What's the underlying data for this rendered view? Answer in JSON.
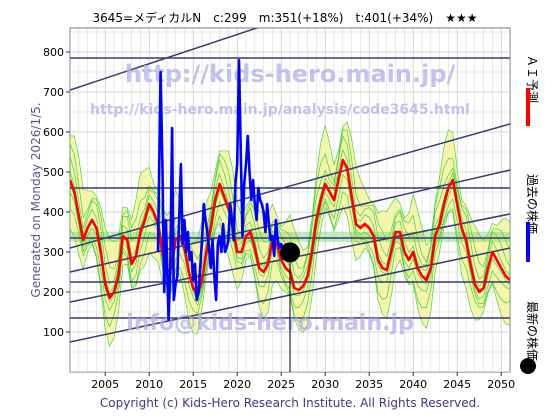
{
  "header": {
    "title": "3645=メディカルN　c:299　m:351(+18%)　t:401(+34%)　★★★"
  },
  "watermarks": {
    "url_main": "http://kids-hero.main.jp/",
    "url_analysis": "http://kids-hero.main.jp/analysis/code3645.html",
    "email": "info@kids-hero.main.jp"
  },
  "side_note": "Generated on Monday 2026/1/5.",
  "footer": "Copyright (c) Kids-Hero Research Institute. All Rights Reserved.",
  "legend": {
    "items": [
      {
        "label": "ＡＩ予測",
        "color": "#ff0000",
        "marker": "line"
      },
      {
        "label": "過去の株価",
        "color": "#0000ff",
        "marker": "line"
      },
      {
        "label": "最新の株価",
        "color": "#000000",
        "marker": "dot"
      }
    ]
  },
  "colors": {
    "plot_bg": "#ffffff",
    "grid": "#c8c8c8",
    "band_fill": "#f4f4a0",
    "band_line": "#33cc33",
    "trend_line": "#3a3a6e",
    "ai_line": "#ff0000",
    "past_line": "#0000ff",
    "latest_dot": "#000000",
    "watermark": "#b0b0e8",
    "side_text": "#555599",
    "footer_text": "#3a3a8a"
  },
  "chart_data": {
    "type": "line",
    "xlim": [
      2001,
      2051
    ],
    "ylim": [
      0,
      860
    ],
    "xticks": [
      2005,
      2010,
      2015,
      2020,
      2025,
      2030,
      2035,
      2040,
      2045,
      2050
    ],
    "yticks": [
      100,
      200,
      300,
      400,
      500,
      600,
      700,
      800
    ],
    "grid": true,
    "legend_position": "right",
    "horizontal_levels": [
      785,
      460,
      335,
      225,
      135
    ],
    "trend_channels": [
      {
        "x": [
          2001,
          2051
        ],
        "y": [
          705,
          1070
        ]
      },
      {
        "x": [
          2001,
          2051
        ],
        "y": [
          250,
          505
        ]
      },
      {
        "x": [
          2001,
          2051
        ],
        "y": [
          310,
          620
        ]
      },
      {
        "x": [
          2001,
          2051
        ],
        "y": [
          175,
          395
        ]
      },
      {
        "x": [
          2001,
          2051
        ],
        "y": [
          75,
          310
        ]
      }
    ],
    "latest": {
      "x": 2026.0,
      "y": 299
    },
    "series": [
      {
        "name": "過去の株価",
        "x": [
          2011.0,
          2011.3,
          2011.5,
          2011.7,
          2011.9,
          2012.0,
          2012.2,
          2012.4,
          2012.6,
          2012.8,
          2013.0,
          2013.2,
          2013.4,
          2013.6,
          2013.8,
          2014.0,
          2014.2,
          2014.4,
          2014.6,
          2014.8,
          2015.0,
          2015.2,
          2015.4,
          2015.6,
          2015.8,
          2016.0,
          2016.2,
          2016.4,
          2016.6,
          2016.8,
          2017.0,
          2017.2,
          2017.4,
          2017.6,
          2017.8,
          2018.0,
          2018.2,
          2018.4,
          2018.6,
          2018.8,
          2019.0,
          2019.2,
          2019.4,
          2019.6,
          2019.8,
          2020.0,
          2020.2,
          2020.4,
          2020.6,
          2020.8,
          2021.0,
          2021.2,
          2021.4,
          2021.6,
          2021.8,
          2022.0,
          2022.2,
          2022.4,
          2022.6,
          2022.8,
          2023.0,
          2023.2,
          2023.4,
          2023.6,
          2023.8,
          2024.0,
          2024.2,
          2024.4,
          2024.6,
          2024.8,
          2025.0,
          2025.3,
          2025.6,
          2025.8,
          2026.0
        ],
        "y": [
          300,
          750,
          520,
          200,
          380,
          300,
          130,
          260,
          610,
          180,
          220,
          240,
          380,
          520,
          320,
          380,
          300,
          350,
          280,
          300,
          230,
          270,
          180,
          200,
          260,
          330,
          420,
          380,
          350,
          310,
          260,
          330,
          240,
          180,
          320,
          340,
          300,
          370,
          300,
          310,
          330,
          420,
          380,
          330,
          470,
          520,
          780,
          560,
          340,
          470,
          520,
          590,
          500,
          430,
          480,
          420,
          380,
          460,
          430,
          420,
          400,
          350,
          420,
          370,
          330,
          340,
          290,
          380,
          330,
          310,
          320,
          300,
          310,
          295,
          299
        ]
      },
      {
        "name": "ＡＩ予測",
        "x": [
          2001.0,
          2001.5,
          2002.0,
          2002.5,
          2003.0,
          2003.5,
          2004.0,
          2004.5,
          2005.0,
          2005.5,
          2006.0,
          2006.5,
          2007.0,
          2007.5,
          2008.0,
          2008.5,
          2009.0,
          2009.5,
          2010.0,
          2010.5,
          2011.0,
          2011.5,
          2012.0,
          2012.5,
          2013.0,
          2013.5,
          2014.0,
          2014.5,
          2015.0,
          2015.5,
          2016.0,
          2016.5,
          2017.0,
          2017.5,
          2018.0,
          2018.5,
          2019.0,
          2019.5,
          2020.0,
          2020.5,
          2021.0,
          2021.5,
          2022.0,
          2022.5,
          2023.0,
          2023.5,
          2024.0,
          2024.5,
          2025.0,
          2025.5,
          2026.0,
          2026.5,
          2027.0,
          2027.5,
          2028.0,
          2028.5,
          2029.0,
          2029.5,
          2030.0,
          2030.5,
          2031.0,
          2031.5,
          2032.0,
          2032.5,
          2033.0,
          2033.5,
          2034.0,
          2034.5,
          2035.0,
          2035.5,
          2036.0,
          2036.5,
          2037.0,
          2037.5,
          2038.0,
          2038.5,
          2039.0,
          2039.5,
          2040.0,
          2040.5,
          2041.0,
          2041.5,
          2042.0,
          2042.5,
          2043.0,
          2043.5,
          2044.0,
          2044.5,
          2045.0,
          2045.5,
          2046.0,
          2046.5,
          2047.0,
          2047.5,
          2048.0,
          2048.5,
          2049.0,
          2049.5,
          2050.0,
          2050.5,
          2051.0
        ],
        "y": [
          480,
          450,
          390,
          330,
          360,
          380,
          360,
          300,
          220,
          185,
          200,
          240,
          340,
          330,
          270,
          290,
          350,
          380,
          420,
          400,
          370,
          300,
          250,
          260,
          330,
          340,
          310,
          250,
          210,
          190,
          230,
          300,
          360,
          430,
          470,
          440,
          410,
          360,
          300,
          300,
          340,
          350,
          310,
          260,
          250,
          270,
          330,
          320,
          280,
          260,
          250,
          210,
          205,
          215,
          240,
          300,
          380,
          430,
          470,
          450,
          430,
          480,
          530,
          510,
          440,
          370,
          360,
          370,
          360,
          340,
          280,
          260,
          255,
          300,
          350,
          350,
          300,
          280,
          300,
          260,
          240,
          230,
          260,
          340,
          370,
          420,
          460,
          480,
          420,
          360,
          330,
          270,
          220,
          200,
          210,
          260,
          300,
          280,
          260,
          240,
          230
        ]
      }
    ]
  }
}
